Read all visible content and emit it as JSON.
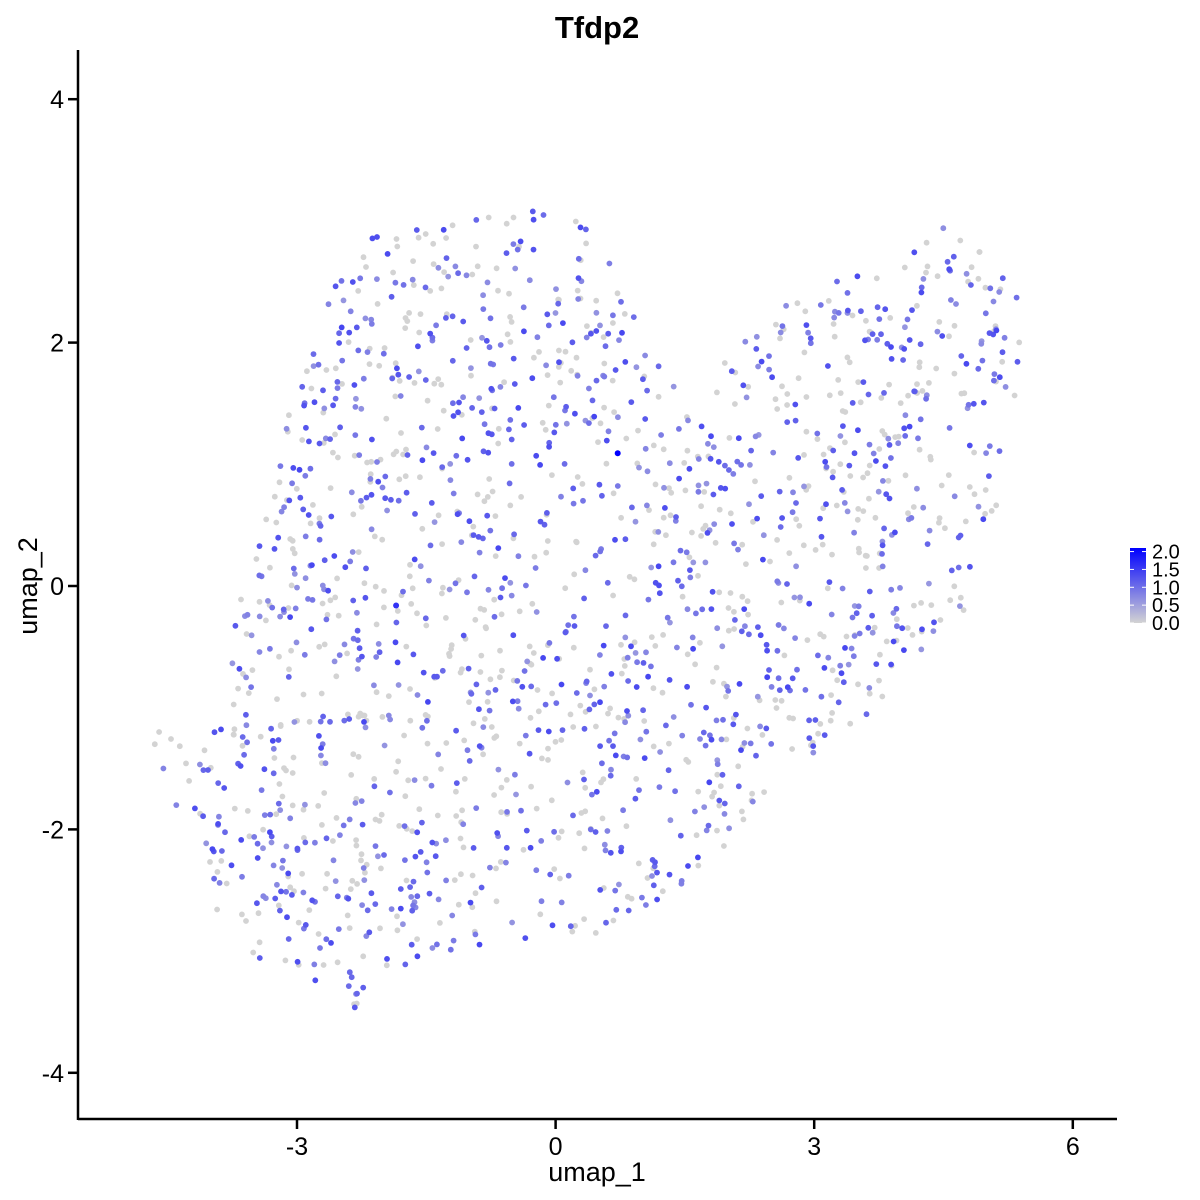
{
  "chart_data": {
    "type": "scatter",
    "title": "Tfdp2",
    "xlabel": "umap_1",
    "ylabel": "umap_2",
    "xlim": [
      -5.9,
      6.5
    ],
    "ylim": [
      -4.35,
      4.45
    ],
    "x_ticks": [
      -3,
      0,
      3,
      6
    ],
    "y_ticks": [
      -4,
      -2,
      0,
      2,
      4
    ],
    "x_tick_labels": [
      "-3",
      "0",
      "3",
      "6"
    ],
    "y_tick_labels": [
      "-4",
      "-2",
      "0",
      "2",
      "4"
    ],
    "grid": false,
    "legend": {
      "placement": "right",
      "title": "",
      "type": "continuous colorbar",
      "range": [
        0.0,
        2.1
      ],
      "breaks": [
        2.0,
        1.5,
        1.0,
        0.5,
        0.0
      ],
      "labels": [
        "2.0",
        "1.5",
        "1.0",
        "0.5",
        "0.0"
      ],
      "low_color": "#d3d3d3",
      "high_color": "#0000ff"
    },
    "color_scale": {
      "low": "#d3d3d3",
      "high": "#0000ff",
      "min": 0.0,
      "max": 2.1
    },
    "highlighted_points": [
      {
        "x": 0.72,
        "y": 1.09,
        "expression": 2.1
      },
      {
        "x": -1.85,
        "y": -0.16,
        "expression": 1.6
      }
    ],
    "cloud": {
      "description_note": "approx. 1800 cells; values estimated from visible point positions",
      "n_points": 1800,
      "outline": [
        [
          -4.6,
          -1.15
        ],
        [
          -4.3,
          -1.45
        ],
        [
          -4.2,
          -1.9
        ],
        [
          -4.05,
          -2.6
        ],
        [
          -3.7,
          -2.95
        ],
        [
          -3.2,
          -3.2
        ],
        [
          -2.7,
          -3.35
        ],
        [
          -2.3,
          -3.5
        ],
        [
          -1.95,
          -3.25
        ],
        [
          -1.4,
          -3.05
        ],
        [
          -0.6,
          -2.95
        ],
        [
          0.1,
          -3.0
        ],
        [
          0.9,
          -2.75
        ],
        [
          1.6,
          -2.45
        ],
        [
          2.2,
          -2.0
        ],
        [
          2.8,
          -1.45
        ],
        [
          3.4,
          -1.2
        ],
        [
          3.9,
          -0.85
        ],
        [
          4.5,
          -0.4
        ],
        [
          5.0,
          -0.05
        ],
        [
          5.2,
          0.5
        ],
        [
          5.35,
          1.2
        ],
        [
          5.4,
          2.0
        ],
        [
          5.35,
          2.45
        ],
        [
          4.8,
          2.9
        ],
        [
          4.4,
          3.05
        ],
        [
          3.8,
          2.6
        ],
        [
          3.2,
          2.55
        ],
        [
          2.6,
          2.3
        ],
        [
          2.1,
          1.95
        ],
        [
          1.5,
          1.7
        ],
        [
          1.1,
          1.9
        ],
        [
          0.8,
          2.45
        ],
        [
          0.5,
          2.9
        ],
        [
          0.0,
          3.1
        ],
        [
          -0.8,
          3.05
        ],
        [
          -1.6,
          2.95
        ],
        [
          -2.2,
          2.85
        ],
        [
          -2.7,
          2.45
        ],
        [
          -2.9,
          2.0
        ],
        [
          -3.1,
          1.4
        ],
        [
          -3.25,
          0.75
        ],
        [
          -3.55,
          0.2
        ],
        [
          -3.75,
          -0.4
        ],
        [
          -3.9,
          -0.85
        ],
        [
          -4.15,
          -1.1
        ],
        [
          -4.6,
          -1.15
        ]
      ],
      "x_range": [
        -4.65,
        5.4
      ],
      "y_range": [
        -3.5,
        3.1
      ],
      "expression_fraction_nonzero": 0.58,
      "expression_typical_nonzero": [
        0.6,
        1.4
      ]
    }
  }
}
